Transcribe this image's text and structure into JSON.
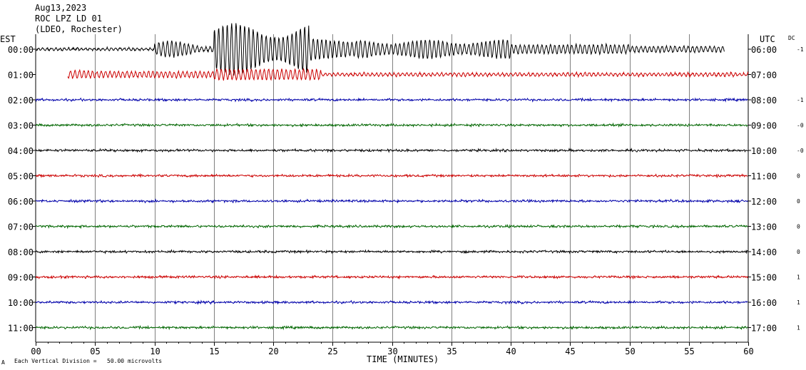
{
  "header": {
    "date": "Aug13,2023",
    "station": "ROC LPZ LD 01",
    "network": "(LDEO, Rochester)"
  },
  "left_axis_title": "EST",
  "right_axis_title": "UTC",
  "dc_label": "DC",
  "footer_note": "Each Vertical Division =   50.00 microvolts",
  "corner_mark": "A",
  "colors": {
    "black": "#000000",
    "red": "#cc0000",
    "blue": "#0000aa",
    "green": "#006600",
    "grid": "#7f7f7f"
  },
  "chart_data": {
    "type": "line",
    "title": "ROC LPZ LD 01",
    "xlabel": "TIME (MINUTES)",
    "xlim": [
      0,
      60
    ],
    "x_ticks": [
      "00",
      "05",
      "10",
      "15",
      "20",
      "25",
      "30",
      "35",
      "40",
      "45",
      "50",
      "55",
      "60"
    ],
    "grid": "vertical lines every 5 minutes",
    "traces": [
      {
        "est": "00:00",
        "utc": "06:00",
        "dc": "-1",
        "color": "black",
        "start_min": 0,
        "end_min": 58,
        "amplitude": "large (earthquake arrival)"
      },
      {
        "est": "01:00",
        "utc": "07:00",
        "dc": "",
        "color": "red",
        "start_min": 2.7,
        "end_min": 60,
        "amplitude": "moderate (earthquake coda)"
      },
      {
        "est": "02:00",
        "utc": "08:00",
        "dc": "-1",
        "color": "blue",
        "start_min": 0,
        "end_min": 60,
        "amplitude": "low noise"
      },
      {
        "est": "03:00",
        "utc": "09:00",
        "dc": "-0",
        "color": "green",
        "start_min": 0,
        "end_min": 60,
        "amplitude": "low noise"
      },
      {
        "est": "04:00",
        "utc": "10:00",
        "dc": "-0",
        "color": "black",
        "start_min": 0,
        "end_min": 60,
        "amplitude": "low noise"
      },
      {
        "est": "05:00",
        "utc": "11:00",
        "dc": "0",
        "color": "red",
        "start_min": 0,
        "end_min": 60,
        "amplitude": "low noise"
      },
      {
        "est": "06:00",
        "utc": "12:00",
        "dc": "0",
        "color": "blue",
        "start_min": 0,
        "end_min": 60,
        "amplitude": "low noise"
      },
      {
        "est": "07:00",
        "utc": "13:00",
        "dc": "0",
        "color": "green",
        "start_min": 0,
        "end_min": 60,
        "amplitude": "low noise"
      },
      {
        "est": "08:00",
        "utc": "14:00",
        "dc": "0",
        "color": "black",
        "start_min": 0,
        "end_min": 60,
        "amplitude": "low noise"
      },
      {
        "est": "09:00",
        "utc": "15:00",
        "dc": "1",
        "color": "red",
        "start_min": 0,
        "end_min": 60,
        "amplitude": "low noise"
      },
      {
        "est": "10:00",
        "utc": "16:00",
        "dc": "1",
        "color": "blue",
        "start_min": 0,
        "end_min": 60,
        "amplitude": "low noise"
      },
      {
        "est": "11:00",
        "utc": "17:00",
        "dc": "1",
        "color": "green",
        "start_min": 0,
        "end_min": 60,
        "amplitude": "low noise"
      }
    ]
  }
}
